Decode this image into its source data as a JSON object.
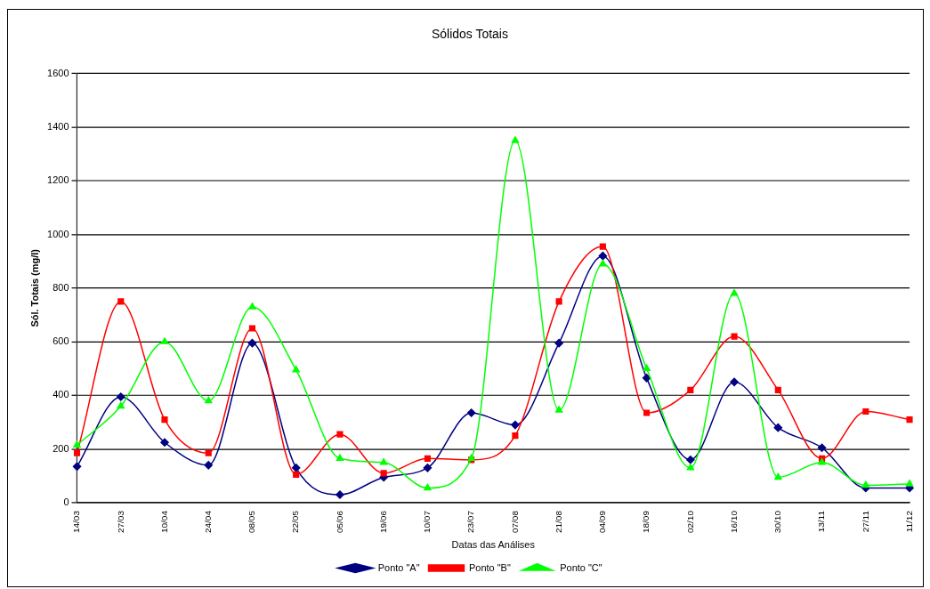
{
  "chart_data": {
    "type": "line",
    "title": "Sólidos Totais",
    "xlabel": "Datas das Análises",
    "ylabel": "Sól. Totais (mg/l)",
    "categories": [
      "14/03",
      "27/03",
      "10/04",
      "24/04",
      "08/05",
      "22/05",
      "05/06",
      "19/06",
      "10/07",
      "23/07",
      "07/08",
      "21/08",
      "04/09",
      "18/09",
      "02/10",
      "16/10",
      "30/10",
      "13/11",
      "27/11",
      "11/12"
    ],
    "series": [
      {
        "name": "Ponto \"A\"",
        "color": "#000080",
        "marker": "diamond",
        "values": [
          135,
          395,
          225,
          140,
          595,
          130,
          30,
          95,
          130,
          335,
          290,
          595,
          920,
          465,
          160,
          450,
          280,
          205,
          55,
          55
        ]
      },
      {
        "name": "Ponto \"B\"",
        "color": "#ff0000",
        "marker": "square",
        "values": [
          185,
          750,
          310,
          185,
          650,
          105,
          255,
          110,
          165,
          160,
          250,
          750,
          955,
          335,
          420,
          620,
          420,
          165,
          340,
          310
        ]
      },
      {
        "name": "Ponto \"C\"",
        "color": "#00ff00",
        "marker": "triangle",
        "values": [
          215,
          360,
          600,
          380,
          730,
          495,
          165,
          150,
          55,
          165,
          1350,
          345,
          890,
          500,
          130,
          780,
          95,
          150,
          65,
          70
        ]
      }
    ],
    "ylim": [
      0,
      1600
    ],
    "yticks": [
      0,
      200,
      400,
      600,
      800,
      1000,
      1200,
      1400,
      1600
    ],
    "grid": "y",
    "legend": "bottom",
    "line_style": "solid"
  }
}
